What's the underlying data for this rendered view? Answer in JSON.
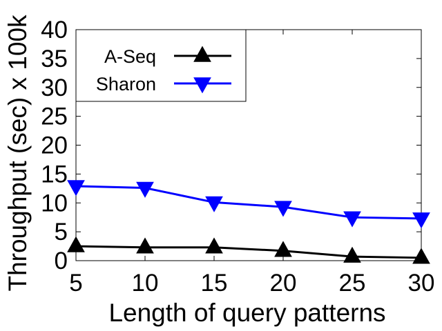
{
  "chart_data": {
    "type": "line",
    "xlabel": "Length of query patterns",
    "ylabel": "Throughput (sec) x 100k",
    "x": [
      5,
      10,
      15,
      20,
      25,
      30
    ],
    "xticks": [
      "5",
      "10",
      "15",
      "20",
      "25",
      "30"
    ],
    "yticks": [
      "0",
      "5",
      "10",
      "15",
      "20",
      "25",
      "30",
      "35",
      "40"
    ],
    "xlim": [
      5,
      30
    ],
    "ylim": [
      0,
      40
    ],
    "grid": false,
    "legend_position": "top-left",
    "series": [
      {
        "name": "A-Seq",
        "values": [
          2.5,
          2.3,
          2.3,
          1.7,
          0.7,
          0.5
        ],
        "color": "#000000",
        "marker": "triangle-up"
      },
      {
        "name": "Sharon",
        "values": [
          12.9,
          12.6,
          10.1,
          9.3,
          7.5,
          7.3
        ],
        "color": "#0000ff",
        "marker": "triangle-down"
      }
    ]
  }
}
